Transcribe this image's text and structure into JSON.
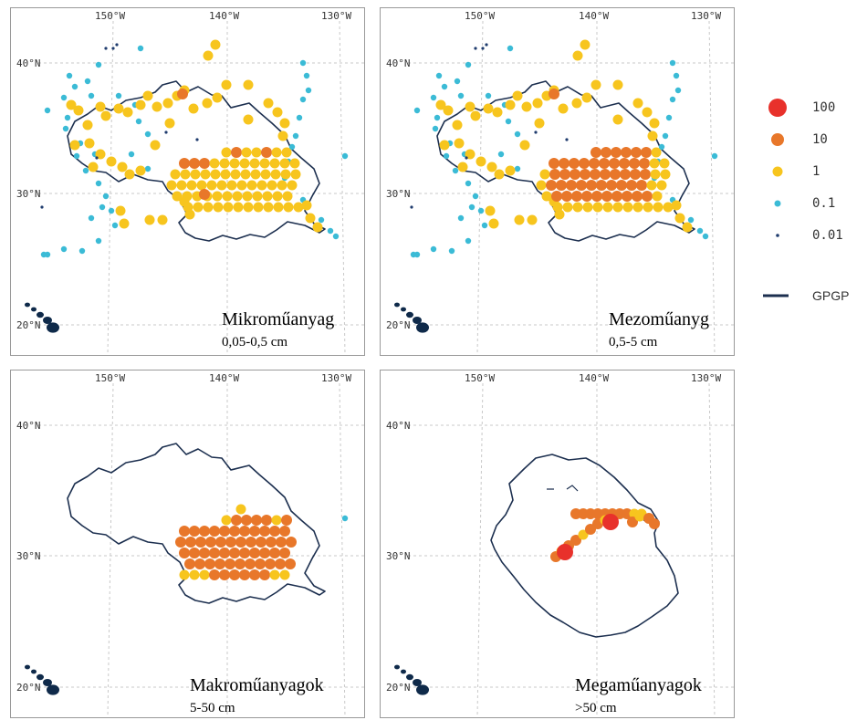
{
  "axes": {
    "lon_labels": [
      "150°W",
      "140°W",
      "130°W"
    ],
    "lat_labels": [
      "40°N",
      "30°N",
      "20°N"
    ]
  },
  "colors": {
    "c100": "#e8312b",
    "c10": "#e8772a",
    "c1": "#f7c51e",
    "c01": "#3bbbd6",
    "c001": "#1f3c6e",
    "gpgp": "#1c2f4f",
    "grid": "#c9c9c9",
    "land": "#0f2a4a"
  },
  "legend": {
    "items": [
      {
        "label": "100",
        "color": "#e8312b",
        "size": "large"
      },
      {
        "label": "10",
        "color": "#e8772a",
        "size": "medium"
      },
      {
        "label": "1",
        "color": "#f7c51e",
        "size": "medium"
      },
      {
        "label": "0.1",
        "color": "#3bbbd6",
        "size": "small"
      },
      {
        "label": "0.01",
        "color": "#1f3c6e",
        "size": "tiny"
      }
    ],
    "line_label": "GPGP"
  },
  "panels": [
    {
      "title": "Mikroműanyag",
      "size_range": "0,05-0,5  cm"
    },
    {
      "title": "Mezoműanyg",
      "size_range": "0,5-5  cm"
    },
    {
      "title": "Makroműanyagok",
      "size_range": "5-50  cm"
    },
    {
      "title": "Megaműanyagok",
      "size_range": ">50  cm"
    }
  ]
}
